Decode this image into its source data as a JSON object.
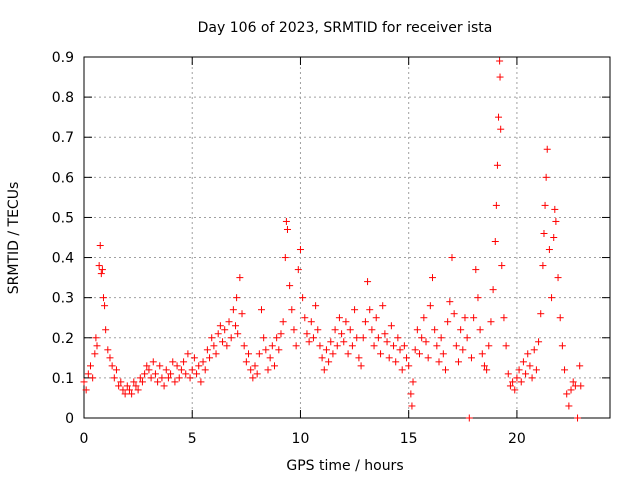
{
  "chart_data": {
    "type": "scatter",
    "title": "Day 106 of 2023, SRMTID for receiver ista",
    "xlabel": "GPS time / hours",
    "ylabel": "SRMTID / TECUs",
    "xlim": [
      0,
      24.3
    ],
    "ylim": [
      0,
      0.9
    ],
    "xticks": [
      0,
      5,
      10,
      15,
      20
    ],
    "yticks": [
      0,
      0.1,
      0.2,
      0.3,
      0.4,
      0.5,
      0.6,
      0.7,
      0.8,
      0.9
    ],
    "xtick_labels": [
      "0",
      "5",
      "10",
      "15",
      "20"
    ],
    "ytick_labels": [
      "0",
      "0.1",
      "0.2",
      "0.3",
      "0.4",
      "0.5",
      "0.6",
      "0.7",
      "0.8",
      "0.9"
    ],
    "grid": true,
    "marker": "+",
    "color": "#ff0000",
    "series": [
      {
        "name": "SRMTID",
        "points": [
          [
            0.0,
            0.09
          ],
          [
            0.1,
            0.07
          ],
          [
            0.2,
            0.11
          ],
          [
            0.3,
            0.13
          ],
          [
            0.4,
            0.1
          ],
          [
            0.5,
            0.16
          ],
          [
            0.55,
            0.2
          ],
          [
            0.6,
            0.18
          ],
          [
            0.7,
            0.38
          ],
          [
            0.75,
            0.43
          ],
          [
            0.8,
            0.36
          ],
          [
            0.85,
            0.37
          ],
          [
            0.9,
            0.3
          ],
          [
            0.95,
            0.28
          ],
          [
            1.0,
            0.22
          ],
          [
            1.1,
            0.17
          ],
          [
            1.2,
            0.15
          ],
          [
            1.3,
            0.13
          ],
          [
            1.4,
            0.1
          ],
          [
            1.5,
            0.12
          ],
          [
            1.6,
            0.08
          ],
          [
            1.7,
            0.09
          ],
          [
            1.8,
            0.07
          ],
          [
            1.9,
            0.06
          ],
          [
            2.0,
            0.08
          ],
          [
            2.1,
            0.07
          ],
          [
            2.2,
            0.06
          ],
          [
            2.3,
            0.09
          ],
          [
            2.4,
            0.08
          ],
          [
            2.5,
            0.07
          ],
          [
            2.6,
            0.1
          ],
          [
            2.7,
            0.09
          ],
          [
            2.8,
            0.11
          ],
          [
            2.9,
            0.13
          ],
          [
            3.0,
            0.12
          ],
          [
            3.1,
            0.1
          ],
          [
            3.2,
            0.14
          ],
          [
            3.3,
            0.11
          ],
          [
            3.4,
            0.09
          ],
          [
            3.5,
            0.13
          ],
          [
            3.6,
            0.1
          ],
          [
            3.7,
            0.08
          ],
          [
            3.8,
            0.12
          ],
          [
            3.9,
            0.1
          ],
          [
            4.0,
            0.11
          ],
          [
            4.1,
            0.14
          ],
          [
            4.2,
            0.09
          ],
          [
            4.3,
            0.13
          ],
          [
            4.4,
            0.1
          ],
          [
            4.5,
            0.12
          ],
          [
            4.6,
            0.14
          ],
          [
            4.7,
            0.11
          ],
          [
            4.8,
            0.16
          ],
          [
            4.9,
            0.1
          ],
          [
            5.0,
            0.12
          ],
          [
            5.1,
            0.15
          ],
          [
            5.2,
            0.11
          ],
          [
            5.3,
            0.13
          ],
          [
            5.4,
            0.09
          ],
          [
            5.5,
            0.14
          ],
          [
            5.6,
            0.12
          ],
          [
            5.7,
            0.17
          ],
          [
            5.8,
            0.15
          ],
          [
            5.9,
            0.2
          ],
          [
            6.0,
            0.18
          ],
          [
            6.1,
            0.16
          ],
          [
            6.2,
            0.21
          ],
          [
            6.3,
            0.23
          ],
          [
            6.4,
            0.19
          ],
          [
            6.5,
            0.22
          ],
          [
            6.6,
            0.18
          ],
          [
            6.7,
            0.24
          ],
          [
            6.8,
            0.2
          ],
          [
            6.9,
            0.27
          ],
          [
            7.0,
            0.23
          ],
          [
            7.05,
            0.3
          ],
          [
            7.1,
            0.21
          ],
          [
            7.2,
            0.35
          ],
          [
            7.3,
            0.26
          ],
          [
            7.4,
            0.18
          ],
          [
            7.5,
            0.14
          ],
          [
            7.6,
            0.16
          ],
          [
            7.7,
            0.12
          ],
          [
            7.8,
            0.1
          ],
          [
            7.9,
            0.13
          ],
          [
            8.0,
            0.11
          ],
          [
            8.1,
            0.16
          ],
          [
            8.2,
            0.27
          ],
          [
            8.3,
            0.2
          ],
          [
            8.4,
            0.17
          ],
          [
            8.5,
            0.12
          ],
          [
            8.6,
            0.15
          ],
          [
            8.7,
            0.18
          ],
          [
            8.8,
            0.13
          ],
          [
            8.9,
            0.2
          ],
          [
            9.0,
            0.17
          ],
          [
            9.1,
            0.21
          ],
          [
            9.2,
            0.24
          ],
          [
            9.3,
            0.4
          ],
          [
            9.35,
            0.49
          ],
          [
            9.4,
            0.47
          ],
          [
            9.5,
            0.33
          ],
          [
            9.6,
            0.27
          ],
          [
            9.7,
            0.22
          ],
          [
            9.8,
            0.18
          ],
          [
            9.9,
            0.37
          ],
          [
            10.0,
            0.42
          ],
          [
            10.1,
            0.3
          ],
          [
            10.2,
            0.25
          ],
          [
            10.3,
            0.21
          ],
          [
            10.4,
            0.19
          ],
          [
            10.5,
            0.24
          ],
          [
            10.6,
            0.2
          ],
          [
            10.7,
            0.28
          ],
          [
            10.8,
            0.22
          ],
          [
            10.9,
            0.18
          ],
          [
            11.0,
            0.15
          ],
          [
            11.1,
            0.12
          ],
          [
            11.2,
            0.17
          ],
          [
            11.3,
            0.14
          ],
          [
            11.4,
            0.19
          ],
          [
            11.5,
            0.16
          ],
          [
            11.6,
            0.22
          ],
          [
            11.7,
            0.18
          ],
          [
            11.8,
            0.25
          ],
          [
            11.9,
            0.21
          ],
          [
            12.0,
            0.19
          ],
          [
            12.1,
            0.24
          ],
          [
            12.2,
            0.16
          ],
          [
            12.3,
            0.22
          ],
          [
            12.4,
            0.18
          ],
          [
            12.5,
            0.27
          ],
          [
            12.6,
            0.2
          ],
          [
            12.7,
            0.15
          ],
          [
            12.8,
            0.13
          ],
          [
            12.9,
            0.2
          ],
          [
            13.0,
            0.24
          ],
          [
            13.1,
            0.34
          ],
          [
            13.2,
            0.27
          ],
          [
            13.3,
            0.22
          ],
          [
            13.4,
            0.18
          ],
          [
            13.5,
            0.25
          ],
          [
            13.6,
            0.2
          ],
          [
            13.7,
            0.16
          ],
          [
            13.8,
            0.28
          ],
          [
            13.9,
            0.21
          ],
          [
            14.0,
            0.19
          ],
          [
            14.1,
            0.15
          ],
          [
            14.2,
            0.23
          ],
          [
            14.3,
            0.18
          ],
          [
            14.4,
            0.14
          ],
          [
            14.5,
            0.2
          ],
          [
            14.6,
            0.17
          ],
          [
            14.7,
            0.12
          ],
          [
            14.8,
            0.18
          ],
          [
            14.9,
            0.15
          ],
          [
            15.0,
            0.13
          ],
          [
            15.1,
            0.06
          ],
          [
            15.15,
            0.03
          ],
          [
            15.2,
            0.09
          ],
          [
            15.3,
            0.17
          ],
          [
            15.4,
            0.22
          ],
          [
            15.5,
            0.16
          ],
          [
            15.6,
            0.2
          ],
          [
            15.7,
            0.25
          ],
          [
            15.8,
            0.19
          ],
          [
            15.9,
            0.15
          ],
          [
            16.0,
            0.28
          ],
          [
            16.1,
            0.35
          ],
          [
            16.2,
            0.22
          ],
          [
            16.3,
            0.18
          ],
          [
            16.4,
            0.14
          ],
          [
            16.5,
            0.2
          ],
          [
            16.6,
            0.16
          ],
          [
            16.7,
            0.12
          ],
          [
            16.8,
            0.24
          ],
          [
            16.9,
            0.29
          ],
          [
            17.0,
            0.4
          ],
          [
            17.1,
            0.26
          ],
          [
            17.2,
            0.18
          ],
          [
            17.3,
            0.14
          ],
          [
            17.4,
            0.22
          ],
          [
            17.5,
            0.17
          ],
          [
            17.6,
            0.25
          ],
          [
            17.7,
            0.2
          ],
          [
            17.8,
            0.0
          ],
          [
            17.9,
            0.15
          ],
          [
            18.0,
            0.25
          ],
          [
            18.1,
            0.37
          ],
          [
            18.2,
            0.3
          ],
          [
            18.3,
            0.22
          ],
          [
            18.4,
            0.16
          ],
          [
            18.5,
            0.13
          ],
          [
            18.6,
            0.12
          ],
          [
            18.7,
            0.18
          ],
          [
            18.8,
            0.24
          ],
          [
            18.9,
            0.32
          ],
          [
            19.0,
            0.44
          ],
          [
            19.05,
            0.53
          ],
          [
            19.1,
            0.63
          ],
          [
            19.15,
            0.75
          ],
          [
            19.2,
            0.89
          ],
          [
            19.22,
            0.85
          ],
          [
            19.25,
            0.72
          ],
          [
            19.3,
            0.38
          ],
          [
            19.4,
            0.25
          ],
          [
            19.5,
            0.18
          ],
          [
            19.6,
            0.11
          ],
          [
            19.7,
            0.08
          ],
          [
            19.8,
            0.09
          ],
          [
            19.9,
            0.07
          ],
          [
            20.0,
            0.1
          ],
          [
            20.1,
            0.12
          ],
          [
            20.2,
            0.09
          ],
          [
            20.3,
            0.14
          ],
          [
            20.4,
            0.11
          ],
          [
            20.5,
            0.16
          ],
          [
            20.6,
            0.13
          ],
          [
            20.7,
            0.1
          ],
          [
            20.8,
            0.17
          ],
          [
            20.9,
            0.12
          ],
          [
            21.0,
            0.19
          ],
          [
            21.1,
            0.26
          ],
          [
            21.2,
            0.38
          ],
          [
            21.25,
            0.46
          ],
          [
            21.3,
            0.53
          ],
          [
            21.35,
            0.6
          ],
          [
            21.4,
            0.67
          ],
          [
            21.5,
            0.42
          ],
          [
            21.6,
            0.3
          ],
          [
            21.7,
            0.45
          ],
          [
            21.75,
            0.52
          ],
          [
            21.8,
            0.49
          ],
          [
            21.9,
            0.35
          ],
          [
            22.0,
            0.25
          ],
          [
            22.1,
            0.18
          ],
          [
            22.2,
            0.12
          ],
          [
            22.3,
            0.06
          ],
          [
            22.4,
            0.03
          ],
          [
            22.5,
            0.07
          ],
          [
            22.6,
            0.09
          ],
          [
            22.7,
            0.08
          ],
          [
            22.8,
            0.0
          ],
          [
            22.9,
            0.13
          ],
          [
            22.95,
            0.08
          ]
        ]
      }
    ]
  }
}
